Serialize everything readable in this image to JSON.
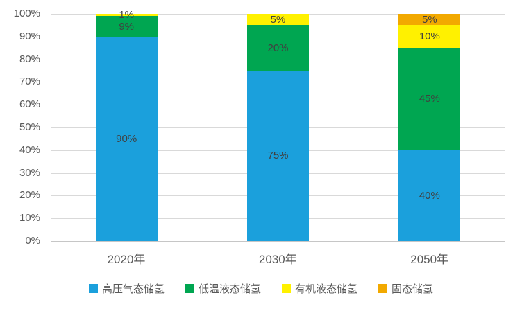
{
  "chart_data": {
    "type": "bar",
    "stacked": true,
    "percent_stacked": true,
    "title": "",
    "xlabel": "",
    "ylabel": "",
    "categories": [
      "2020年",
      "2030年",
      "2050年"
    ],
    "series": [
      {
        "name": "高压气态储氢",
        "color": "#1BA0DC",
        "values": [
          90,
          75,
          40
        ],
        "labels": [
          "90%",
          "75%",
          "40%"
        ]
      },
      {
        "name": "低温液态储氢",
        "color": "#00A651",
        "values": [
          9,
          20,
          45
        ],
        "labels": [
          "9%",
          "20%",
          "45%"
        ]
      },
      {
        "name": "有机液态储氢",
        "color": "#FFF100",
        "values": [
          1,
          5,
          10
        ],
        "labels": [
          "1%",
          "5%",
          "10%"
        ]
      },
      {
        "name": "固态储氢",
        "color": "#F2A900",
        "values": [
          0,
          0,
          5
        ],
        "labels": [
          null,
          null,
          "5%"
        ]
      }
    ],
    "y_ticks": [
      "100%",
      "90%",
      "80%",
      "70%",
      "60%",
      "50%",
      "40%",
      "30%",
      "20%",
      "10%",
      "0%"
    ],
    "ylim": [
      0,
      100
    ],
    "grid": true,
    "legend_position": "bottom"
  },
  "colors": {
    "background": "#FFFFFF",
    "gridline": "#D9D9D9",
    "axis_baseline": "#C6C6C6",
    "tick_text": "#595959",
    "data_label_text": "#404040"
  }
}
